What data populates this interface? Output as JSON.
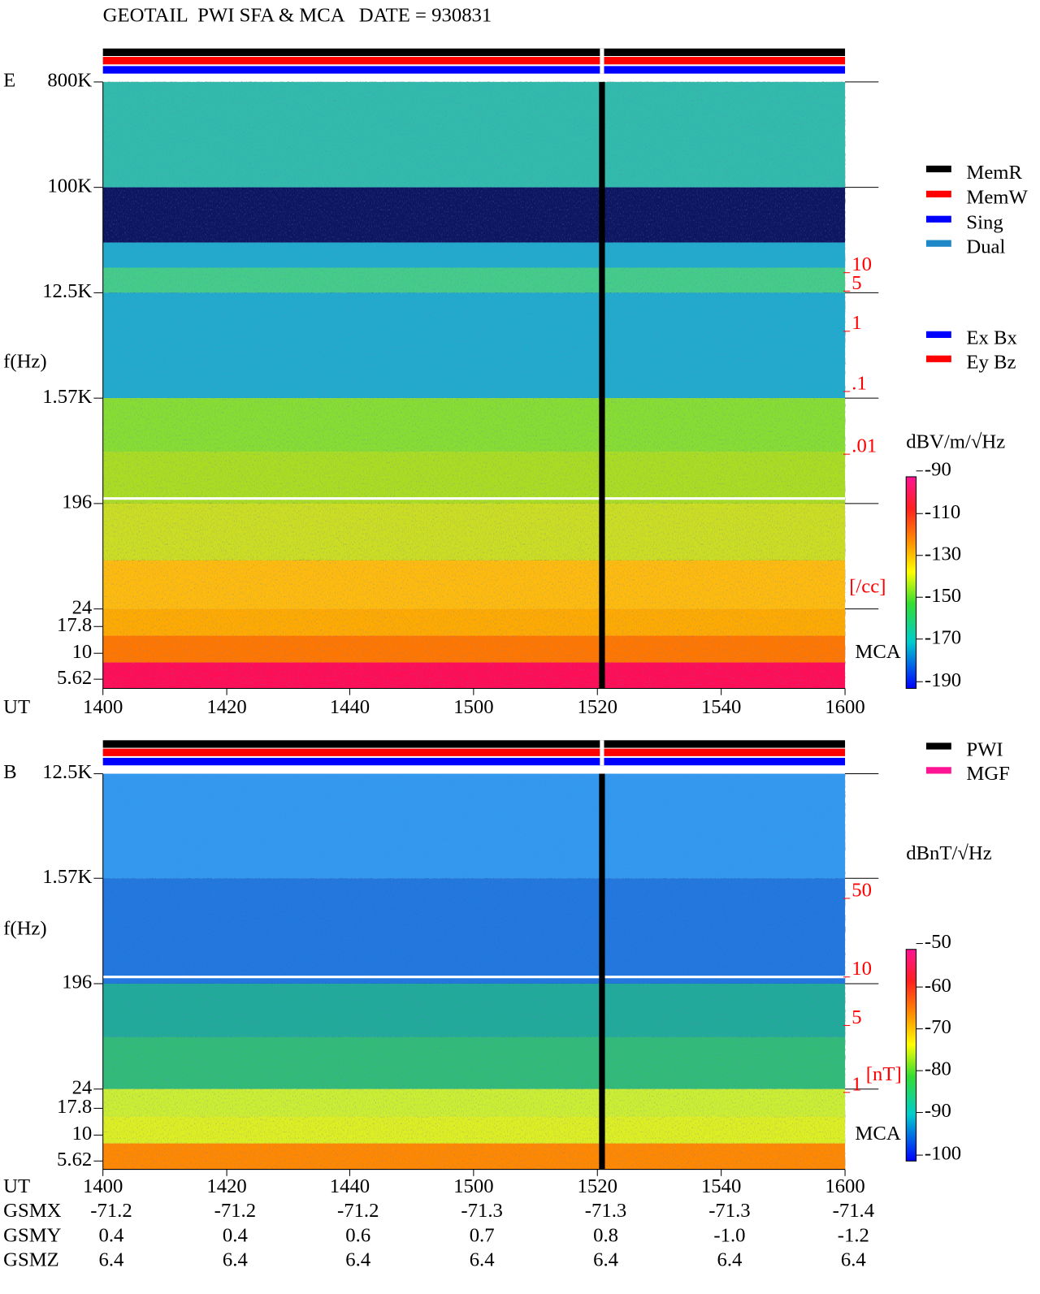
{
  "header": {
    "title": "GEOTAIL  PWI SFA & MCA   DATE = 930831"
  },
  "time_axis": {
    "label": "UT",
    "ticks": [
      "1400",
      "1420",
      "1440",
      "1500",
      "1520",
      "1540",
      "1600"
    ]
  },
  "panels": [
    {
      "label": "E",
      "axis_label": "f(Hz)",
      "freq_ticks": [
        "800K",
        "100K",
        "12.5K",
        "1.57K",
        "196",
        "24",
        "17.8",
        "10",
        "5.62"
      ],
      "right_ticks": [
        "10",
        "5",
        "1",
        ".1",
        ".01"
      ],
      "right_unit": "[/cc]",
      "mca": "MCA",
      "colorbar_unit": "dBV/m/√Hz",
      "colorbar_ticks": [
        -90,
        -110,
        -130,
        -150,
        -170,
        -190
      ],
      "legend": [
        {
          "name": "MemR",
          "color": "#000000"
        },
        {
          "name": "MemW",
          "color": "#ff0000"
        },
        {
          "name": "Sing",
          "color": "#0000ff"
        },
        {
          "name": "Dual",
          "color": "#1e88c8"
        }
      ],
      "legend2": [
        {
          "name": "Ex Bx",
          "color": "#0000ff"
        },
        {
          "name": "Ey Bz",
          "color": "#ff0000"
        }
      ]
    },
    {
      "label": "B",
      "axis_label": "f(Hz)",
      "freq_ticks": [
        "12.5K",
        "1.57K",
        "196",
        "24",
        "17.8",
        "10",
        "5.62"
      ],
      "right_ticks": [
        "50",
        "10",
        "5",
        "1"
      ],
      "right_unit": "[nT]",
      "mca": "MCA",
      "colorbar_unit": "dBnT/√Hz",
      "colorbar_ticks": [
        -50,
        -60,
        -70,
        -80,
        -90,
        -100
      ],
      "legend": [
        {
          "name": "PWI",
          "color": "#000000"
        },
        {
          "name": "MGF",
          "color": "#ff1493"
        }
      ]
    }
  ],
  "orbit": {
    "rows": [
      {
        "label": "GSMX",
        "values": [
          "-71.2",
          "-71.2",
          "-71.2",
          "-71.3",
          "-71.3",
          "-71.3",
          "-71.4"
        ]
      },
      {
        "label": "GSMY",
        "values": [
          "0.4",
          "0.4",
          "0.6",
          "0.7",
          "0.8",
          "-1.0",
          "-1.2"
        ]
      },
      {
        "label": "GSMZ",
        "values": [
          "6.4",
          "6.4",
          "6.4",
          "6.4",
          "6.4",
          "6.4",
          "6.4"
        ]
      }
    ]
  }
}
